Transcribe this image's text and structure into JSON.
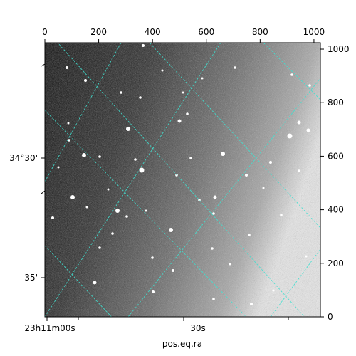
{
  "chart_data": {
    "type": "heatmap",
    "title": "",
    "xlabel": "pos.eq.ra",
    "ylabel": "",
    "pixel_axis_top": {
      "ticks": [
        0,
        200,
        400,
        600,
        800,
        1000
      ],
      "range": [
        0,
        1024
      ]
    },
    "pixel_axis_right": {
      "ticks": [
        0,
        200,
        400,
        600,
        800,
        1000
      ],
      "range": [
        0,
        1024
      ]
    },
    "world_axis_bottom": {
      "label": "pos.eq.ra",
      "ticks": [
        {
          "label": "23h11m00s",
          "value_s": 0
        },
        {
          "label": "30s",
          "value_s": 30
        }
      ]
    },
    "world_axis_left": {
      "ticks": [
        {
          "label": "34°30'",
          "value_arcmin": 30
        },
        {
          "label": "35'",
          "value_arcmin": 35
        }
      ]
    },
    "grid": true,
    "colormap": "gray",
    "grid_color": "#40e0d0"
  }
}
